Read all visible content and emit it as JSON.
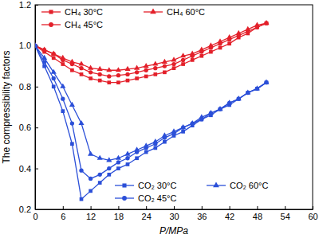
{
  "chart_data": {
    "type": "line",
    "x_label": "P/MPa",
    "y_label": "The compressibility factors",
    "x": [
      0,
      2,
      4,
      6,
      8,
      10,
      12,
      14,
      16,
      18,
      20,
      22,
      24,
      26,
      28,
      30,
      32,
      34,
      36,
      38,
      40,
      42,
      44,
      46,
      48,
      50
    ],
    "series": [
      {
        "name": "CH₄ 30°C",
        "color": "#e3202a",
        "marker": "square",
        "values": [
          1.0,
          0.97,
          0.94,
          0.91,
          0.88,
          0.86,
          0.84,
          0.83,
          0.82,
          0.82,
          0.83,
          0.84,
          0.85,
          0.86,
          0.87,
          0.89,
          0.91,
          0.93,
          0.95,
          0.97,
          0.99,
          1.01,
          1.04,
          1.06,
          1.09,
          1.11
        ]
      },
      {
        "name": "CH₄ 60°C",
        "color": "#e3202a",
        "marker": "triangle",
        "values": [
          1.0,
          0.98,
          0.96,
          0.94,
          0.92,
          0.91,
          0.89,
          0.885,
          0.88,
          0.88,
          0.885,
          0.89,
          0.9,
          0.91,
          0.92,
          0.93,
          0.95,
          0.96,
          0.98,
          1.0,
          1.02,
          1.04,
          1.06,
          1.08,
          1.1,
          1.11
        ]
      },
      {
        "name": "CH₄ 45°C",
        "color": "#e3202a",
        "marker": "circle",
        "values": [
          1.0,
          0.98,
          0.96,
          0.93,
          0.91,
          0.89,
          0.87,
          0.86,
          0.85,
          0.855,
          0.86,
          0.87,
          0.88,
          0.89,
          0.9,
          0.91,
          0.93,
          0.95,
          0.97,
          0.99,
          1.01,
          1.03,
          1.05,
          1.07,
          1.09,
          1.11
        ]
      },
      {
        "name": "CO₂ 30°C",
        "color": "#2b4fd8",
        "marker": "square",
        "values": [
          1.0,
          0.9,
          0.8,
          0.68,
          0.52,
          0.25,
          0.29,
          0.33,
          0.37,
          0.4,
          0.42,
          0.45,
          0.48,
          0.5,
          0.53,
          0.56,
          0.58,
          0.61,
          0.64,
          0.66,
          0.69,
          0.71,
          0.74,
          0.77,
          0.79,
          0.82
        ]
      },
      {
        "name": "CO₂ 60°C",
        "color": "#2b4fd8",
        "marker": "triangle",
        "values": [
          1.0,
          0.94,
          0.87,
          0.8,
          0.71,
          0.62,
          0.47,
          0.45,
          0.44,
          0.45,
          0.47,
          0.49,
          0.51,
          0.53,
          0.56,
          0.58,
          0.6,
          0.62,
          0.65,
          0.67,
          0.69,
          0.72,
          0.74,
          0.77,
          0.79,
          0.82
        ]
      },
      {
        "name": "CO₂ 45°C",
        "color": "#2b4fd8",
        "marker": "circle",
        "values": [
          1.0,
          0.92,
          0.84,
          0.74,
          0.62,
          0.39,
          0.35,
          0.37,
          0.4,
          0.43,
          0.45,
          0.48,
          0.5,
          0.52,
          0.55,
          0.57,
          0.6,
          0.62,
          0.64,
          0.67,
          0.69,
          0.72,
          0.74,
          0.77,
          0.79,
          0.82
        ]
      }
    ],
    "xlim": [
      0,
      60
    ],
    "xticks": [
      0,
      6,
      12,
      18,
      24,
      30,
      36,
      42,
      48,
      54,
      60
    ],
    "ylim": [
      0.2,
      1.2
    ],
    "yticks": [
      0.2,
      0.4,
      0.6,
      0.8,
      {
        "value": 1.0,
        "label": "1.0"
      },
      1.2
    ],
    "legend": "inside",
    "grid": false
  }
}
